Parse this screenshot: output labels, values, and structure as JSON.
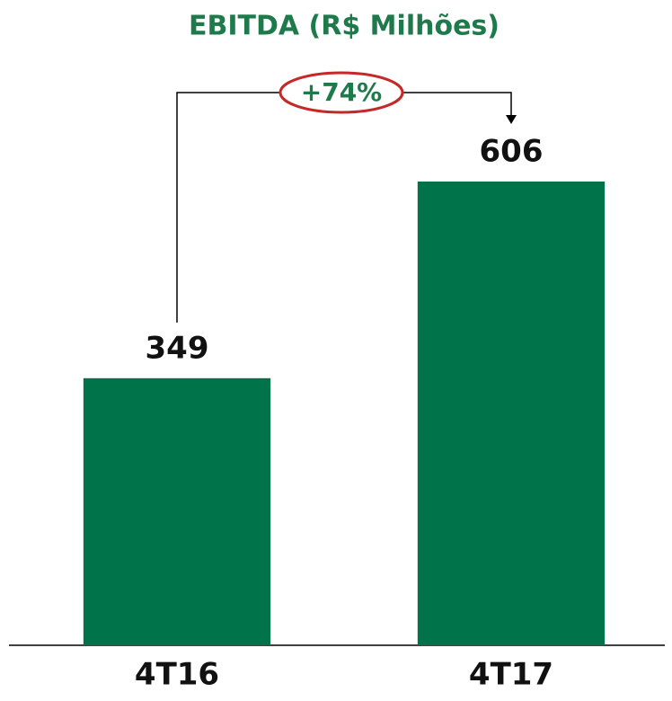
{
  "chart_data": {
    "type": "bar",
    "title": "EBITDA (R$ Milhões)",
    "categories": [
      "4T16",
      "4T17"
    ],
    "values": [
      349,
      606
    ],
    "color": "#00734a",
    "annotation": "+74%"
  }
}
